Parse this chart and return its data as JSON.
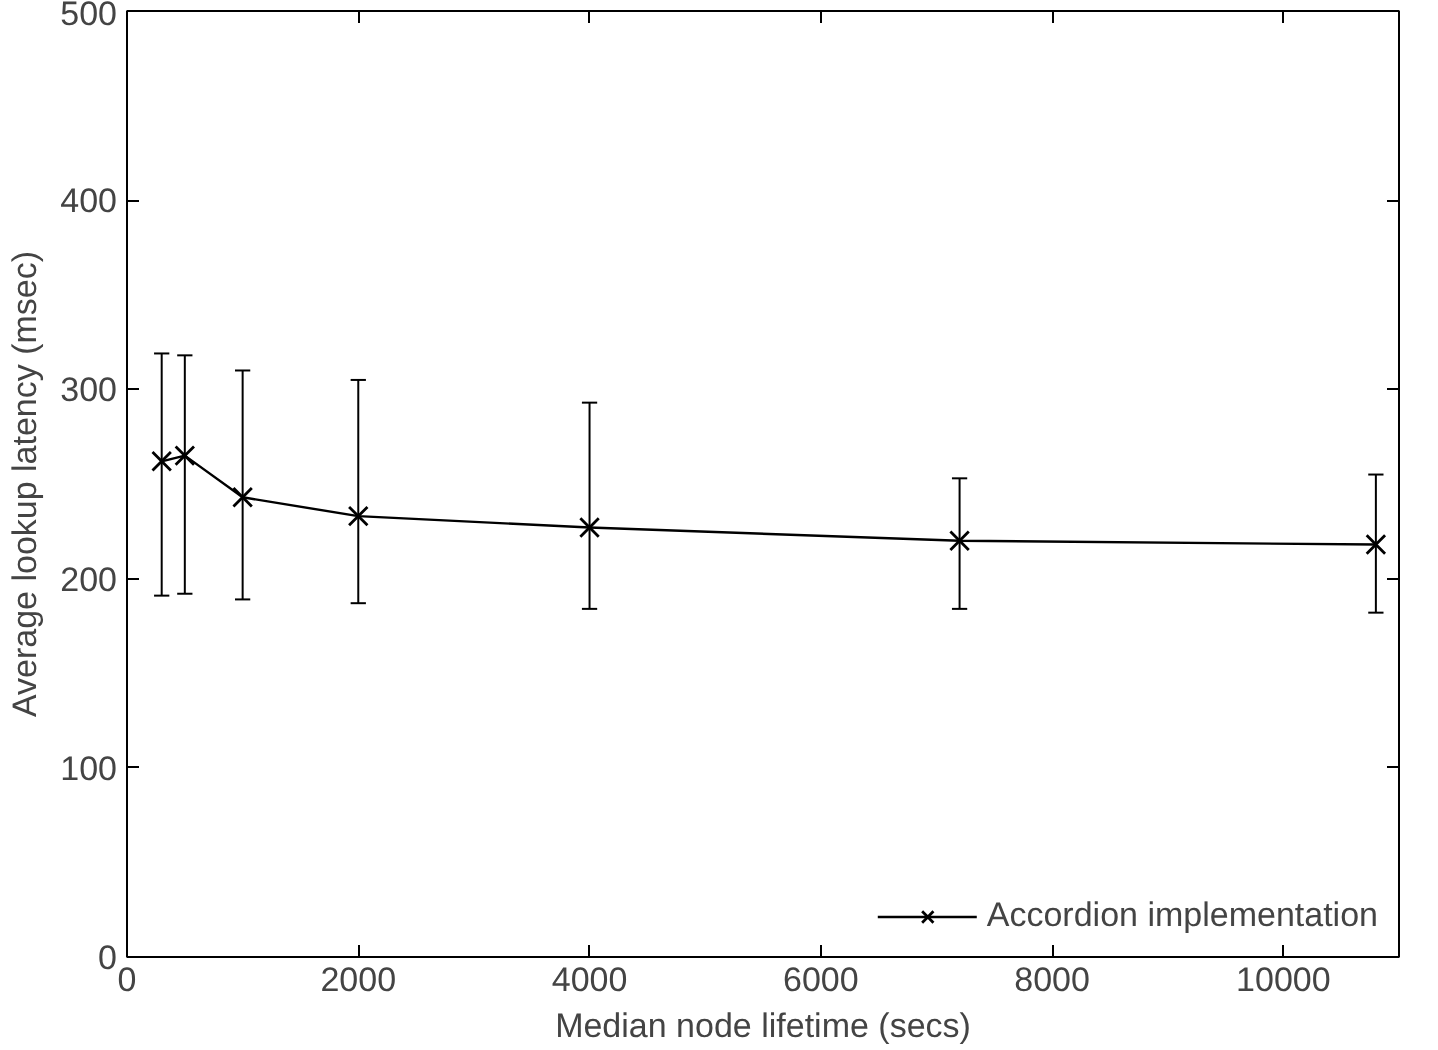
{
  "chart_data": {
    "type": "line",
    "xlabel": "Median node lifetime (secs)",
    "ylabel": "Average lookup latency (msec)",
    "x": [
      300,
      500,
      1000,
      2000,
      4000,
      7200,
      10800
    ],
    "series": [
      {
        "name": "Accordion implementation",
        "color": "#000000",
        "values": [
          262,
          265,
          243,
          233,
          227,
          220,
          218
        ],
        "errors": [
          [
            191,
            319
          ],
          [
            192,
            318
          ],
          [
            189,
            310
          ],
          [
            187,
            305
          ],
          [
            184,
            293
          ],
          [
            184,
            253
          ],
          [
            182,
            255
          ]
        ]
      }
    ],
    "marker": "cross",
    "line_style": "solid",
    "legend": "bottom right",
    "grid": false,
    "xlim": [
      0,
      11000
    ],
    "xticks": [
      0,
      2000,
      4000,
      6000,
      8000,
      10000
    ],
    "ylim": [
      0,
      500
    ],
    "yticks": [
      0,
      100,
      200,
      300,
      400,
      500
    ]
  }
}
